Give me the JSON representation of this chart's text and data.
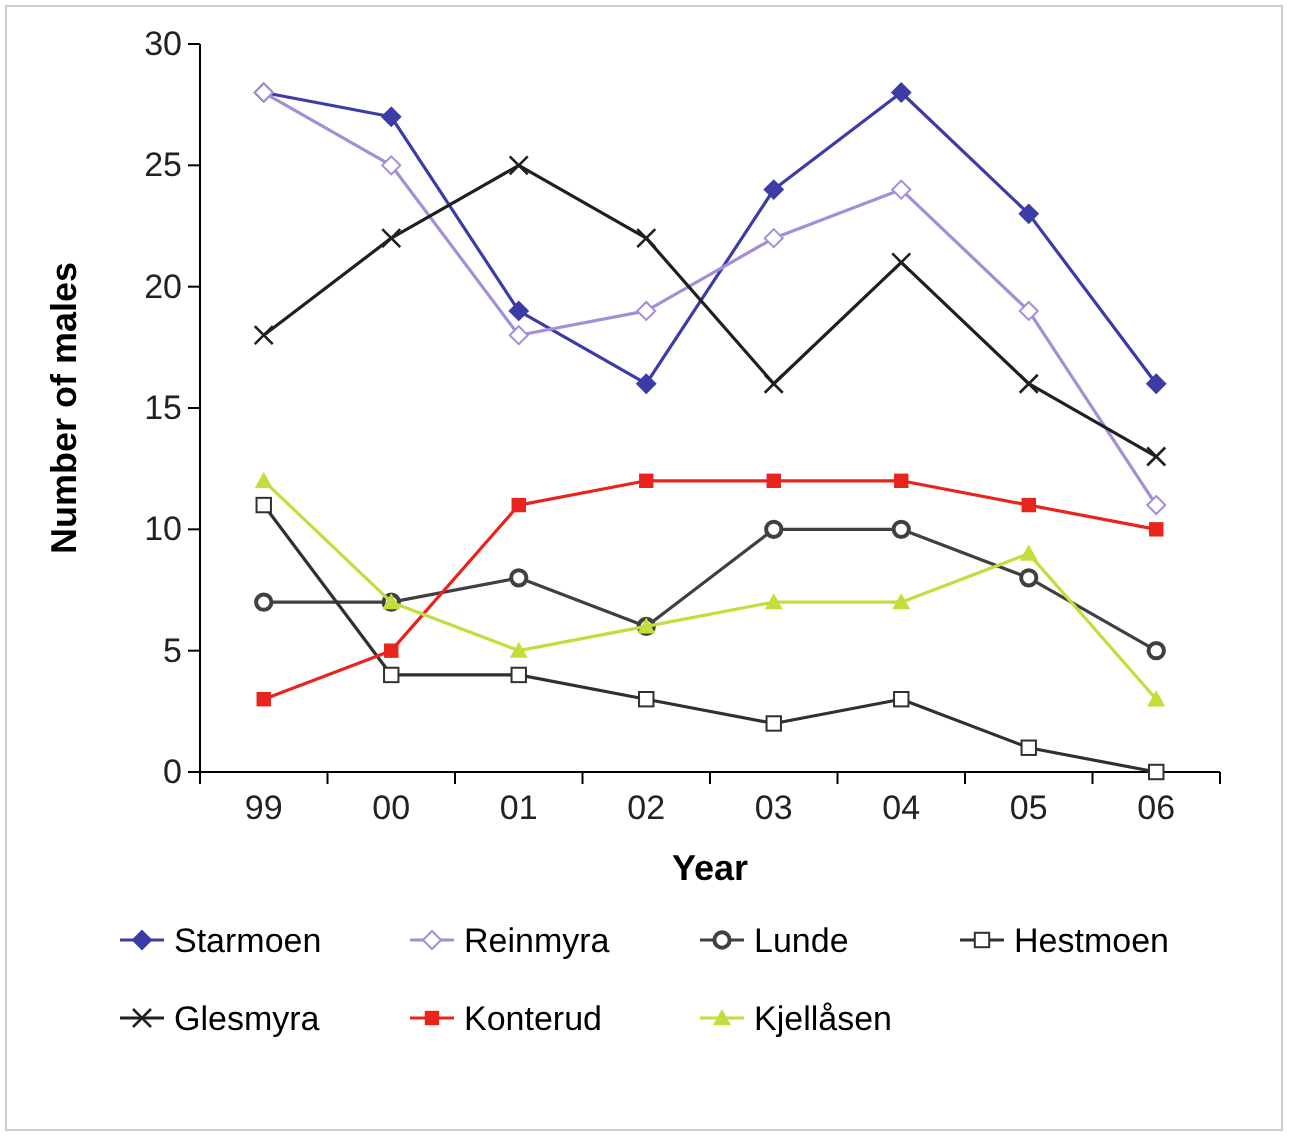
{
  "chart_data": {
    "type": "line",
    "xlabel": "Year",
    "ylabel": "Number of males",
    "categories": [
      "99",
      "00",
      "01",
      "02",
      "03",
      "04",
      "05",
      "06"
    ],
    "ylim": [
      0,
      30
    ],
    "yticks": [
      0,
      5,
      10,
      15,
      20,
      25,
      30
    ],
    "grid": false,
    "legend": "bottom",
    "series": [
      {
        "name": "Starmoen",
        "color": "#3c3ca8",
        "marker": "diamond",
        "values": [
          28,
          27,
          19,
          16,
          24,
          28,
          23,
          16
        ]
      },
      {
        "name": "Reinmyra",
        "color": "#a48ed8",
        "marker": "diamond-open",
        "values": [
          28,
          25,
          18,
          19,
          22,
          24,
          19,
          11
        ]
      },
      {
        "name": "Lunde",
        "color": "#404040",
        "marker": "circle",
        "values": [
          7,
          7,
          8,
          6,
          10,
          10,
          8,
          5
        ]
      },
      {
        "name": "Hestmoen",
        "color": "#303030",
        "marker": "square-open",
        "values": [
          11,
          4,
          4,
          3,
          2,
          3,
          1,
          0
        ]
      },
      {
        "name": "Glesmyra",
        "color": "#202020",
        "marker": "cross",
        "values": [
          18,
          22,
          25,
          22,
          16,
          21,
          16,
          13
        ]
      },
      {
        "name": "Konterud",
        "color": "#e8241c",
        "marker": "square",
        "values": [
          3,
          5,
          11,
          12,
          12,
          12,
          11,
          10
        ]
      },
      {
        "name": "Kjellåsen",
        "color": "#c4dc3c",
        "marker": "triangle",
        "values": [
          12,
          7,
          5,
          6,
          7,
          7,
          9,
          3
        ]
      }
    ]
  }
}
